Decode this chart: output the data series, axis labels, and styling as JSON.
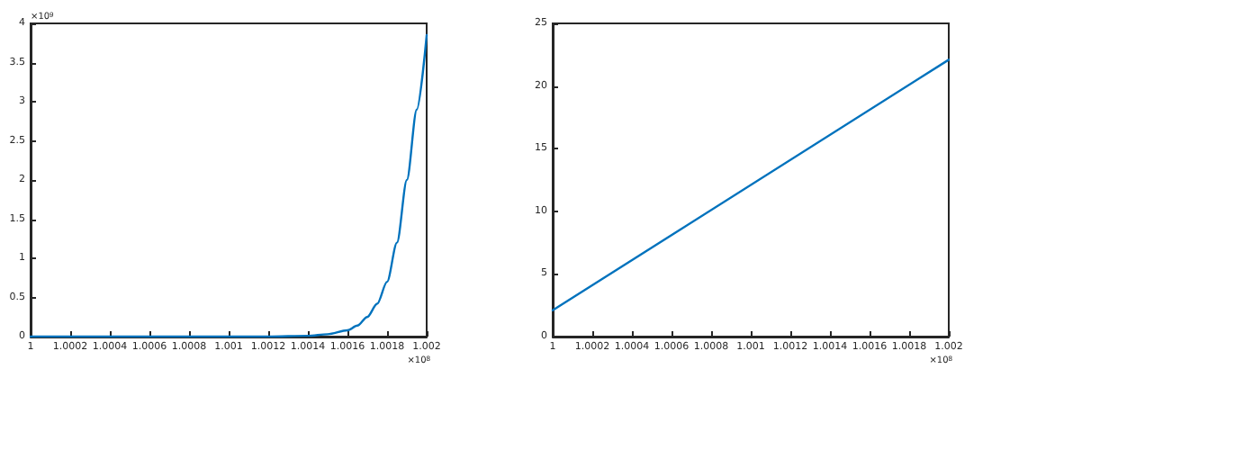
{
  "chart_data": [
    {
      "type": "line",
      "x": [
        1,
        1.0004,
        1.0008,
        1.0012,
        1.0014,
        1.0015,
        1.0016,
        1.00165,
        1.0017,
        1.00175,
        1.0018,
        1.00185,
        1.0019,
        1.00195,
        1.002
      ],
      "series": [
        {
          "color": "#0072bd",
          "values": [
            0,
            0,
            0,
            0,
            0.01,
            0.03,
            0.08,
            0.14,
            0.25,
            0.42,
            0.7,
            1.2,
            2.0,
            2.9,
            3.85
          ]
        }
      ],
      "xlim": [
        1,
        1.002
      ],
      "xticks": [
        1,
        1.0002,
        1.0004,
        1.0006,
        1.0008,
        1.001,
        1.0012,
        1.0014,
        1.0016,
        1.0018,
        1.002
      ],
      "ylim": [
        0,
        4
      ],
      "yticks": [
        0,
        0.5,
        1,
        1.5,
        2,
        2.5,
        3,
        3.5,
        4
      ],
      "annotations": [
        "×10$^{9}$",
        "×10$^{8}$"
      ],
      "marker": "none",
      "line_style": "solid"
    },
    {
      "type": "line",
      "x": [
        1,
        1.002
      ],
      "series": [
        {
          "color": "#0072bd",
          "values": [
            2.1,
            22.1
          ]
        }
      ],
      "xlim": [
        1,
        1.002
      ],
      "xticks": [
        1,
        1.0002,
        1.0004,
        1.0006,
        1.0008,
        1.001,
        1.0012,
        1.0014,
        1.0016,
        1.0018,
        1.002
      ],
      "ylim": [
        0,
        25
      ],
      "yticks": [
        0,
        5,
        10,
        15,
        20,
        25
      ],
      "annotations": [
        null,
        "×10$^{8}$"
      ],
      "marker": "none",
      "line_style": "solid"
    }
  ]
}
